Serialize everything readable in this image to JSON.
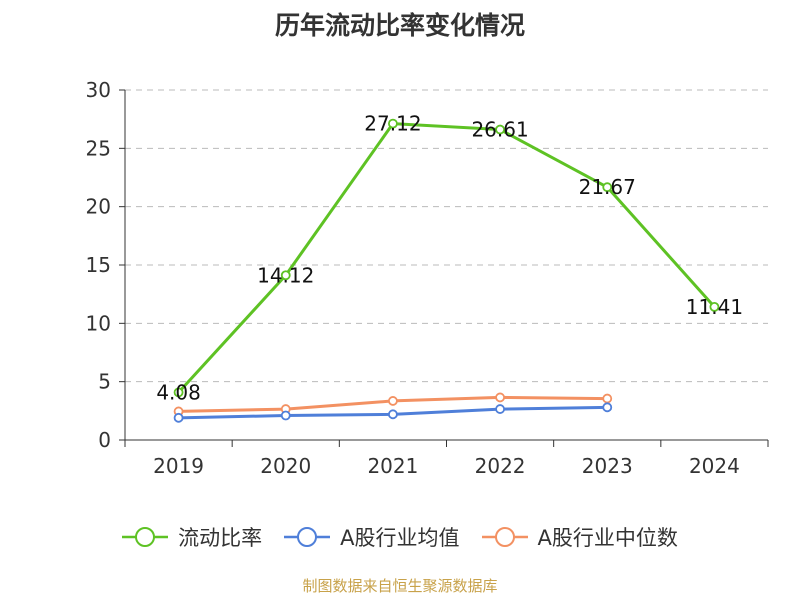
{
  "chart_data": {
    "type": "line",
    "title": "历年流动比率变化情况",
    "categories": [
      "2019",
      "2020",
      "2021",
      "2022",
      "2023",
      "2024"
    ],
    "ylim": [
      0,
      30
    ],
    "yticks": [
      "0",
      "5",
      "10",
      "15",
      "20",
      "25",
      "30"
    ],
    "grid": true,
    "legend_position": "bottom",
    "series": [
      {
        "name": "流动比率",
        "color": "#5ec224",
        "values": [
          4.08,
          14.12,
          27.12,
          26.61,
          21.67,
          11.41
        ],
        "labels": [
          "4.08",
          "14.12",
          "27.12",
          "26.61",
          "21.67",
          "11.41"
        ]
      },
      {
        "name": "A股行业均值",
        "color": "#4f7fd9",
        "values": [
          1.9,
          2.1,
          2.2,
          2.65,
          2.8,
          null
        ]
      },
      {
        "name": "A股行业中位数",
        "color": "#f39162",
        "values": [
          2.45,
          2.65,
          3.35,
          3.65,
          3.55,
          null
        ]
      }
    ]
  },
  "source_note": "制图数据来自恒生聚源数据库"
}
